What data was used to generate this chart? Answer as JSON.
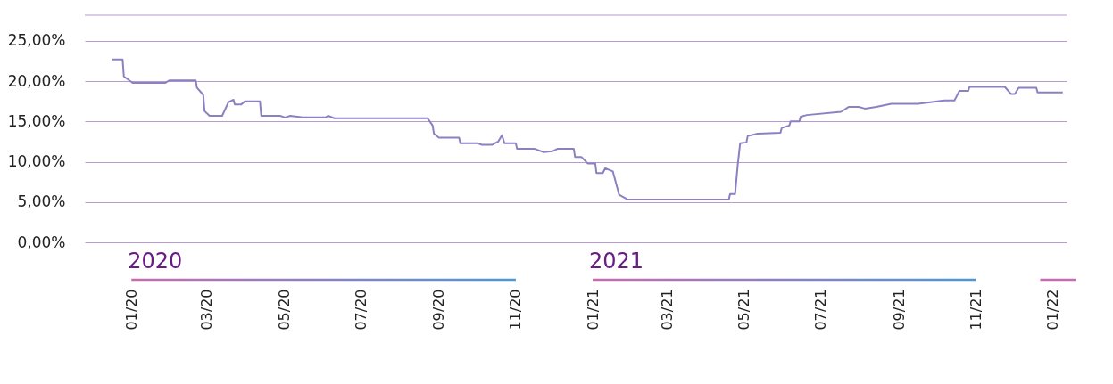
{
  "chart_data": {
    "type": "line",
    "x": [
      "2019-12-17",
      "2019-12-25",
      "2019-12-26",
      "2020-01-02",
      "2020-01-28",
      "2020-01-31",
      "2020-02-21",
      "2020-02-22",
      "2020-02-27",
      "2020-02-28",
      "2020-03-03",
      "2020-03-13",
      "2020-03-18",
      "2020-03-22",
      "2020-03-23",
      "2020-03-28",
      "2020-03-31",
      "2020-04-12",
      "2020-04-13",
      "2020-04-28",
      "2020-05-02",
      "2020-05-06",
      "2020-05-16",
      "2020-06-03",
      "2020-06-05",
      "2020-06-10",
      "2020-08-23",
      "2020-08-27",
      "2020-08-28",
      "2020-09-01",
      "2020-09-17",
      "2020-09-18",
      "2020-10-02",
      "2020-10-05",
      "2020-10-13",
      "2020-10-18",
      "2020-10-21",
      "2020-10-23",
      "2020-11-01",
      "2020-11-02",
      "2020-11-16",
      "2020-11-23",
      "2020-11-30",
      "2020-12-04",
      "2020-12-17",
      "2020-12-18",
      "2020-12-23",
      "2020-12-28",
      "2021-01-03",
      "2021-01-04",
      "2021-01-09",
      "2021-01-11",
      "2021-01-17",
      "2021-01-22",
      "2021-01-29",
      "2021-04-19",
      "2021-04-20",
      "2021-04-24",
      "2021-04-26",
      "2021-04-28",
      "2021-05-03",
      "2021-05-04",
      "2021-05-12",
      "2021-05-30",
      "2021-05-31",
      "2021-06-06",
      "2021-06-07",
      "2021-06-14",
      "2021-06-15",
      "2021-06-20",
      "2021-07-17",
      "2021-07-23",
      "2021-07-31",
      "2021-08-05",
      "2021-08-14",
      "2021-08-26",
      "2021-09-16",
      "2021-10-07",
      "2021-10-15",
      "2021-10-19",
      "2021-10-26",
      "2021-10-27",
      "2021-11-24",
      "2021-11-29",
      "2021-12-02",
      "2021-12-05",
      "2021-12-19",
      "2021-12-20",
      "2022-01-09"
    ],
    "series": [
      {
        "color": "#8d80c2",
        "values": [
          22.7,
          22.7,
          20.6,
          19.8,
          19.8,
          20.1,
          20.1,
          19.2,
          18.3,
          16.3,
          15.7,
          15.7,
          17.4,
          17.7,
          17.1,
          17.1,
          17.5,
          17.5,
          15.7,
          15.7,
          15.5,
          15.7,
          15.5,
          15.5,
          15.7,
          15.4,
          15.4,
          14.5,
          13.5,
          13.0,
          13.0,
          12.3,
          12.3,
          12.1,
          12.1,
          12.5,
          13.3,
          12.3,
          12.3,
          11.6,
          11.6,
          11.2,
          11.3,
          11.6,
          11.6,
          10.6,
          10.6,
          9.8,
          9.8,
          8.6,
          8.6,
          9.2,
          8.8,
          5.9,
          5.3,
          5.3,
          6.0,
          6.0,
          9.5,
          12.3,
          12.4,
          13.2,
          13.5,
          13.6,
          14.2,
          14.5,
          15.0,
          15.0,
          15.6,
          15.8,
          16.2,
          16.8,
          16.8,
          16.6,
          16.8,
          17.2,
          17.2,
          17.6,
          17.6,
          18.8,
          18.8,
          19.3,
          19.3,
          18.4,
          18.4,
          19.2,
          19.2,
          18.6,
          18.6
        ]
      }
    ],
    "ylim": [
      0,
      28.2
    ],
    "yticks": [
      {
        "value": 0,
        "label": "0,00%"
      },
      {
        "value": 5,
        "label": "5,00%"
      },
      {
        "value": 10,
        "label": "10,00%"
      },
      {
        "value": 15,
        "label": "15,00%"
      },
      {
        "value": 20,
        "label": "20,00%"
      },
      {
        "value": 25,
        "label": "25,00%"
      }
    ],
    "xlim": [
      "2019-11-25",
      "2022-01-12"
    ],
    "xticks": [
      {
        "value": "2020-01-01",
        "label": "01/20"
      },
      {
        "value": "2020-03-01",
        "label": "03/20"
      },
      {
        "value": "2020-05-01",
        "label": "05/20"
      },
      {
        "value": "2020-07-01",
        "label": "07/20"
      },
      {
        "value": "2020-09-01",
        "label": "09/20"
      },
      {
        "value": "2020-11-01",
        "label": "11/20"
      },
      {
        "value": "2021-01-01",
        "label": "01/21"
      },
      {
        "value": "2021-03-01",
        "label": "03/21"
      },
      {
        "value": "2021-05-01",
        "label": "05/21"
      },
      {
        "value": "2021-07-01",
        "label": "07/21"
      },
      {
        "value": "2021-09-01",
        "label": "09/21"
      },
      {
        "value": "2021-11-01",
        "label": "11/21"
      },
      {
        "value": "2022-01-01",
        "label": "01/22"
      }
    ],
    "annotations": [
      "2020",
      "2021"
    ],
    "grid": "y",
    "marker": "none",
    "line_style": "solid"
  }
}
